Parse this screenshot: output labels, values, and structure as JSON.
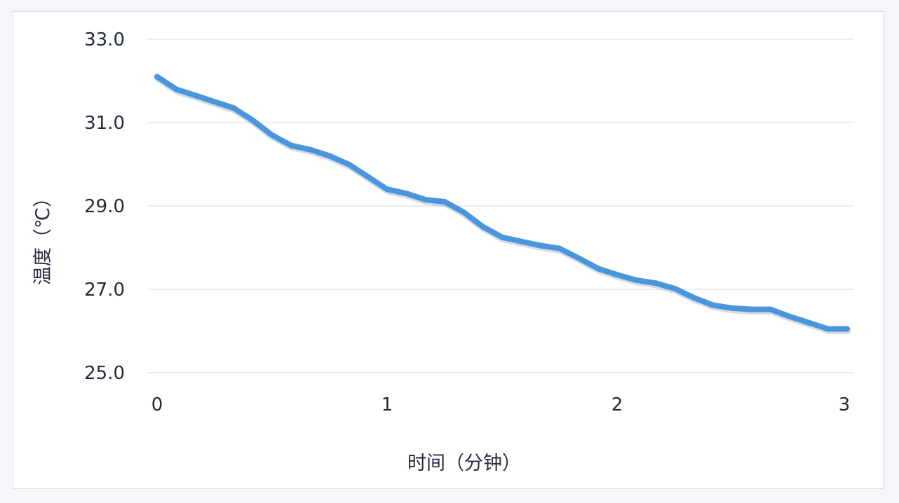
{
  "chart_data": {
    "type": "line",
    "xlabel": "时间（分钟）",
    "ylabel": "温度（℃）",
    "xlim": [
      0,
      3
    ],
    "ylim": [
      25.0,
      33.0
    ],
    "y_ticks": [
      "25.0",
      "27.0",
      "29.0",
      "31.0",
      "33.0"
    ],
    "x_ticks": [
      "0",
      "1",
      "2",
      "3"
    ],
    "grid": "horizontal",
    "line_color": "#4a96dd",
    "series": [
      {
        "x": [
          0,
          0.083,
          0.167,
          0.25,
          0.333,
          0.417,
          0.5,
          0.583,
          0.667,
          0.75,
          0.833,
          0.917,
          1.0,
          1.083,
          1.167,
          1.25,
          1.333,
          1.417,
          1.5,
          1.583,
          1.667,
          1.75,
          1.833,
          1.917,
          2.0,
          2.083,
          2.167,
          2.25,
          2.333,
          2.417,
          2.5,
          2.583,
          2.667,
          2.75,
          2.833,
          2.917,
          3.0
        ],
        "values": [
          32.1,
          31.8,
          31.65,
          31.5,
          31.35,
          31.05,
          30.7,
          30.45,
          30.35,
          30.2,
          30.0,
          29.7,
          29.4,
          29.3,
          29.15,
          29.1,
          28.85,
          28.5,
          28.25,
          28.15,
          28.05,
          27.98,
          27.75,
          27.5,
          27.35,
          27.22,
          27.15,
          27.02,
          26.8,
          26.62,
          26.55,
          26.52,
          26.52,
          26.35,
          26.2,
          26.05,
          26.05
        ]
      }
    ]
  }
}
